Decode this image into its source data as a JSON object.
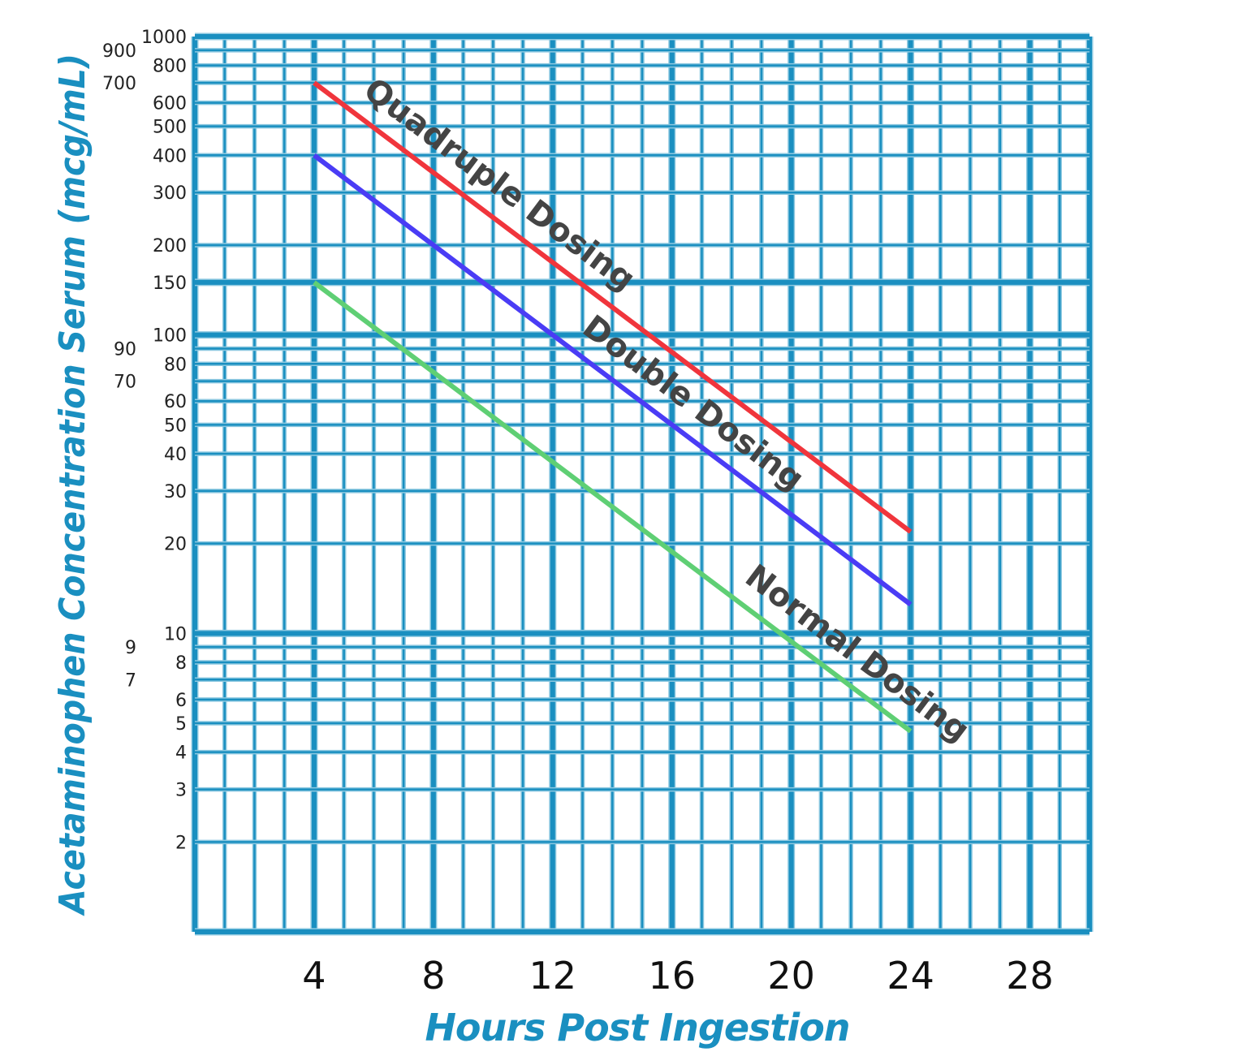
{
  "chart_data": {
    "type": "line",
    "title": "",
    "xlabel": "Hours Post Ingestion",
    "ylabel": "Acetaminophen Concentration Serum (mcg/mL)",
    "xlim": [
      0,
      30
    ],
    "ylim": [
      1,
      1000
    ],
    "yscale": "log",
    "grid": true,
    "x_ticks": [
      4,
      8,
      12,
      16,
      20,
      24,
      28
    ],
    "x_tick_labels": [
      "4",
      "8",
      "12",
      "16",
      "20",
      "24",
      "28"
    ],
    "y_ticks": [
      1000,
      900,
      800,
      700,
      600,
      500,
      400,
      300,
      200,
      150,
      100,
      90,
      80,
      70,
      60,
      50,
      40,
      30,
      20,
      10,
      9,
      8,
      7,
      6,
      5,
      4,
      3,
      2
    ],
    "y_tick_labels": [
      "1000",
      "900",
      "800",
      "700",
      "600",
      "500",
      "400",
      "300",
      "200",
      "150",
      "100",
      "90",
      "80",
      "70",
      "60",
      "50",
      "40",
      "30",
      "20",
      "10",
      "9",
      "8",
      "7",
      "6",
      "5",
      "4",
      "3",
      "2"
    ],
    "legend": "inline labels along lines",
    "series": [
      {
        "name": "Quadruple Dosing",
        "color": "#f0353c",
        "x": [
          4,
          24
        ],
        "y": [
          700,
          21.9
        ]
      },
      {
        "name": "Double Dosing",
        "color": "#4a3cf5",
        "x": [
          4,
          24
        ],
        "y": [
          400,
          12.5
        ]
      },
      {
        "name": "Normal Dosing",
        "color": "#5fcf74",
        "x": [
          4,
          24
        ],
        "y": [
          150,
          4.7
        ]
      }
    ],
    "colors": {
      "grid": "#1a8fc0",
      "axis_title": "#1a8fc0"
    }
  }
}
